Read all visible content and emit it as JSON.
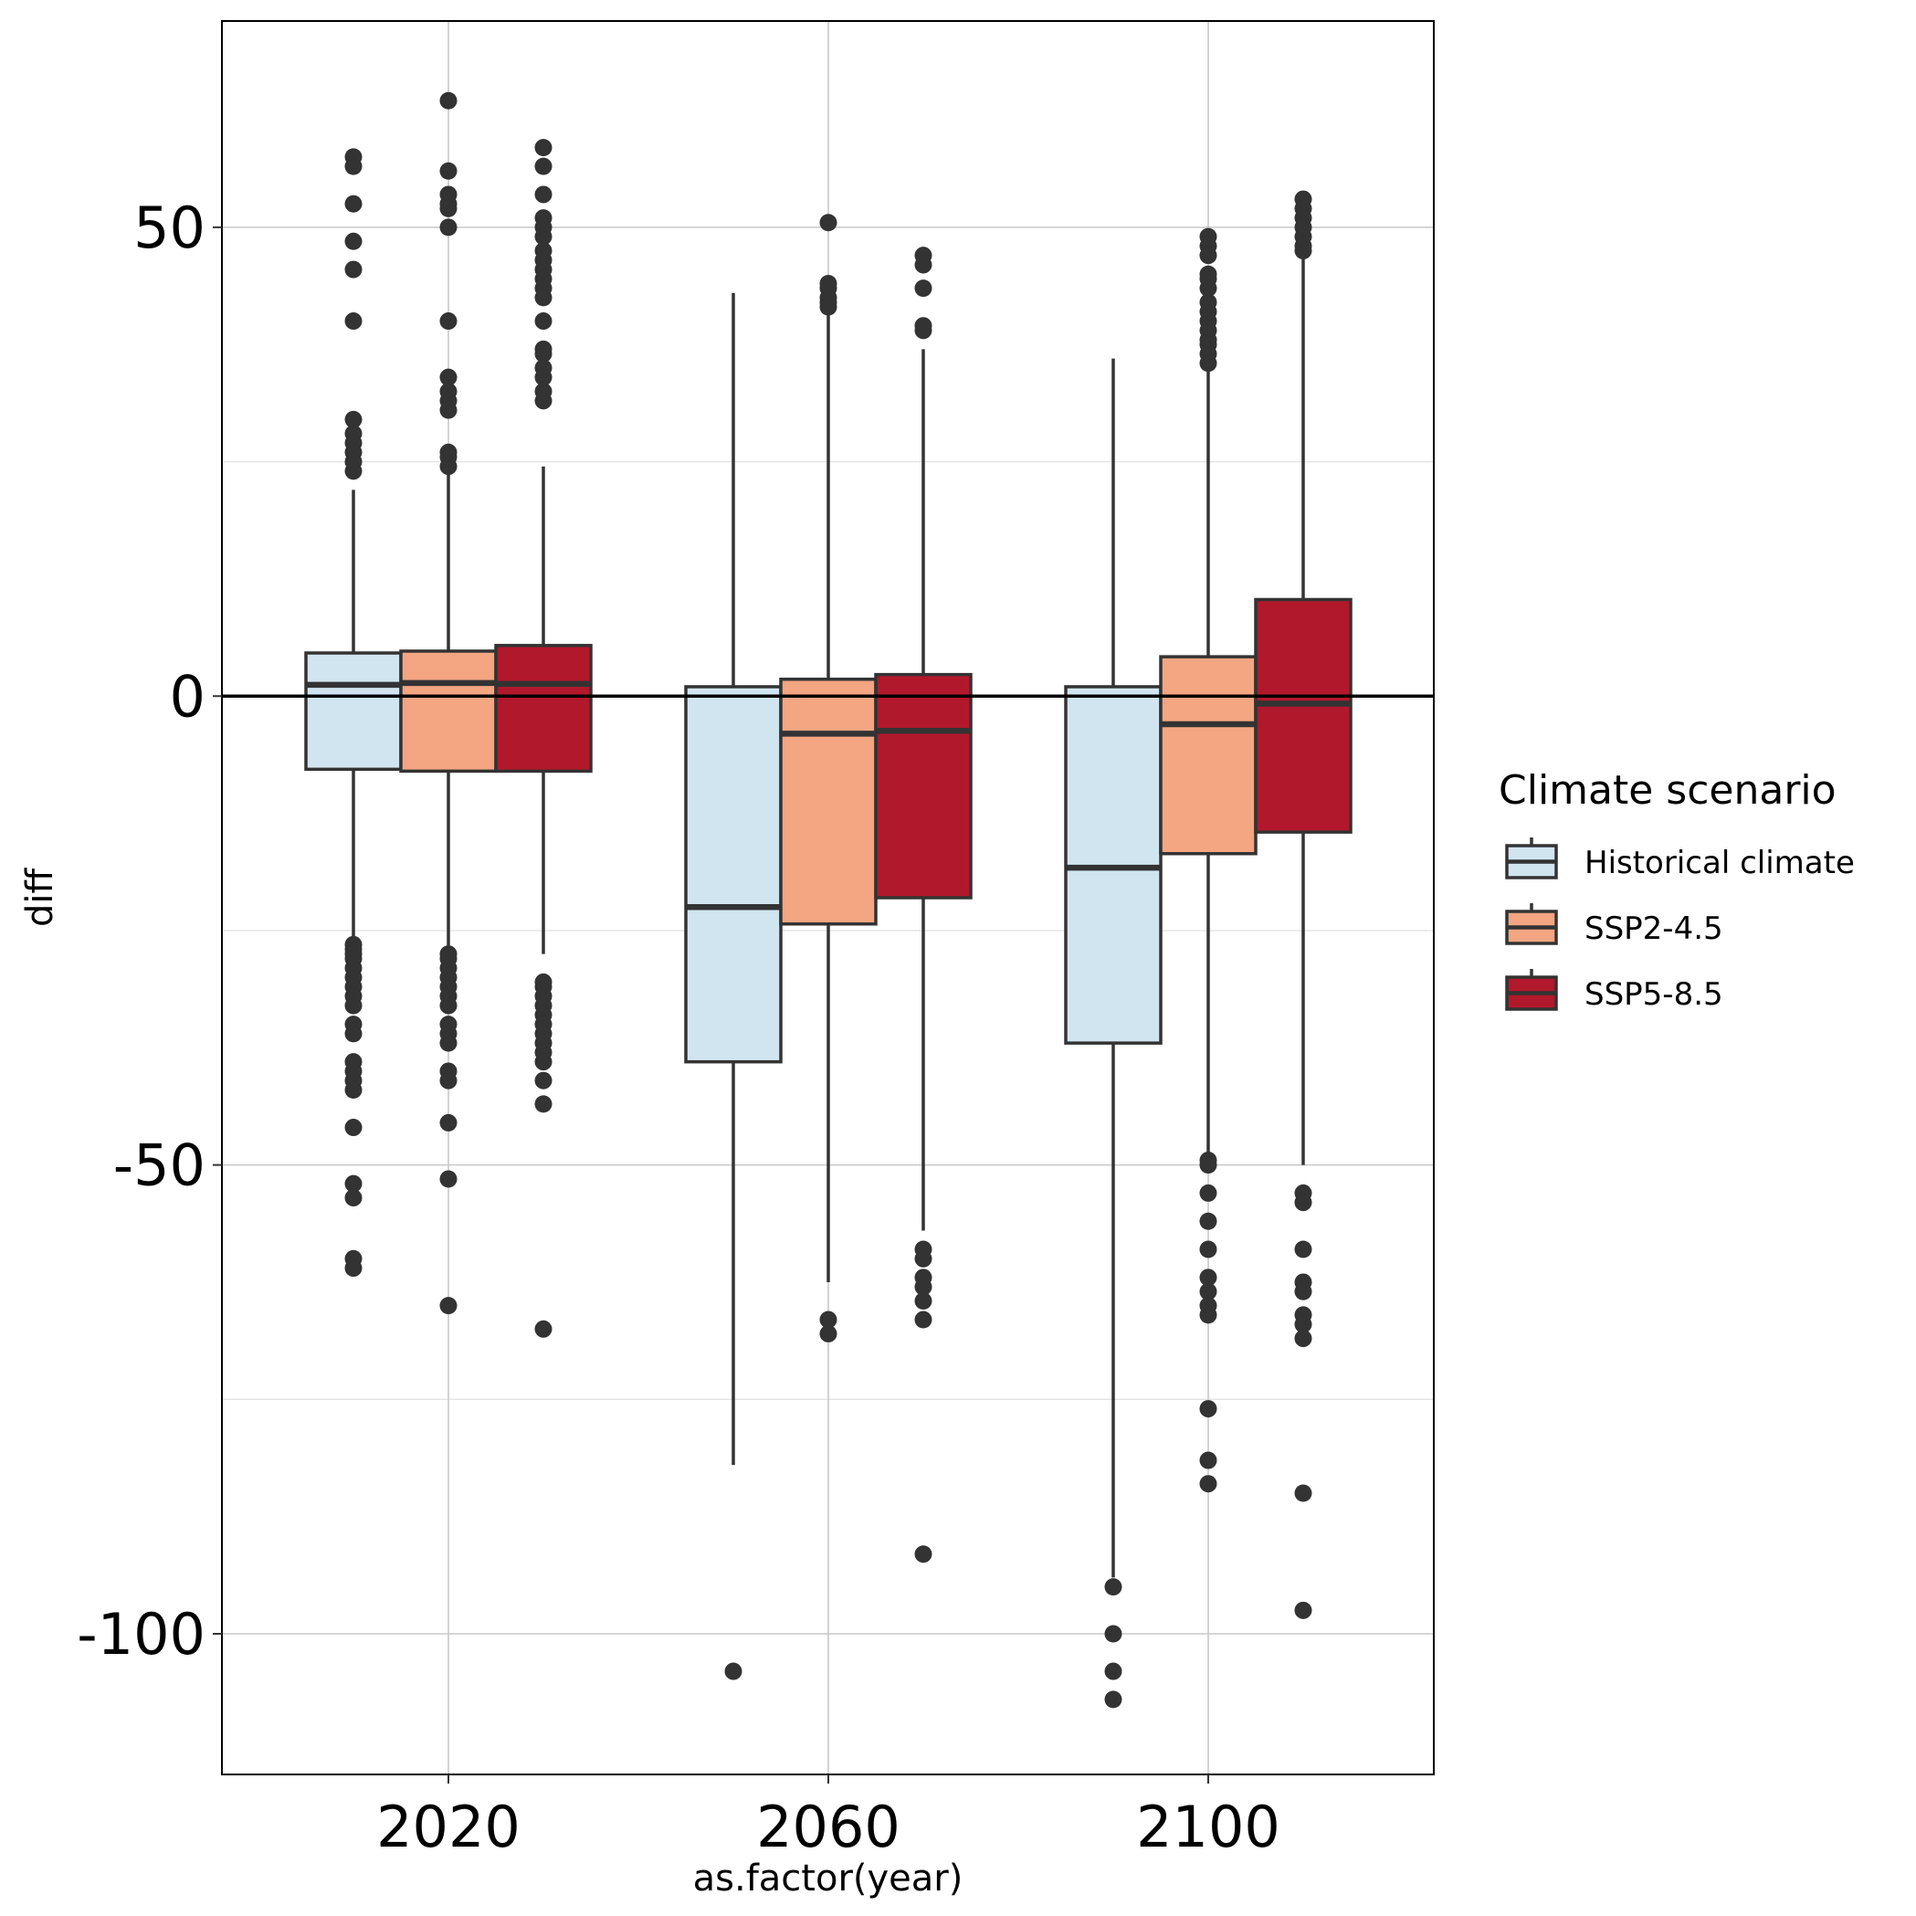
{
  "chart_data": {
    "type": "boxplot",
    "title": "",
    "xlabel": "as.factor(year)",
    "ylabel": "diff",
    "categories": [
      "2020",
      "2060",
      "2100"
    ],
    "ylim": [
      -115,
      72
    ],
    "yticks": [
      50,
      0,
      -50,
      -100
    ],
    "ytick_labels": [
      "50",
      "0",
      "-50",
      "-100"
    ],
    "minor_gridlines": [
      25,
      -25,
      -75
    ],
    "grid": true,
    "reference_line": 0,
    "legend": {
      "title": "Climate scenario",
      "position": "right",
      "entries": [
        "Historical climate",
        "SSP2-4.5",
        "SSP5-8.5"
      ]
    },
    "series": [
      {
        "name": "Historical climate",
        "color": "#d1e5f0",
        "boxes": [
          {
            "category": "2020",
            "whisker_low": -26,
            "q1": -7.8,
            "median": 1.2,
            "q3": 4.6,
            "whisker_high": 22,
            "outliers": [
              57.5,
              56.5,
              52.5,
              48.5,
              45.5,
              40,
              29.5,
              28,
              27,
              26,
              25,
              24,
              -26.5,
              -27,
              -27.5,
              -28,
              -29,
              -30,
              -31,
              -32,
              -33,
              -35,
              -36,
              -39,
              -40,
              -41,
              -42,
              -46,
              -52,
              -53.5,
              -60,
              -61
            ]
          },
          {
            "category": "2060",
            "whisker_low": -82,
            "q1": -39,
            "median": -22.5,
            "q3": 1,
            "whisker_high": 43,
            "outliers": [
              -104
            ]
          },
          {
            "category": "2100",
            "whisker_low": -94,
            "q1": -37,
            "median": -18.3,
            "q3": 1,
            "whisker_high": 36,
            "outliers": [
              -95,
              -100,
              -104,
              -107
            ]
          }
        ]
      },
      {
        "name": "SSP2-4.5",
        "color": "#f4a582",
        "boxes": [
          {
            "category": "2020",
            "whisker_low": -27,
            "q1": -8,
            "median": 1.4,
            "q3": 4.8,
            "whisker_high": 24,
            "outliers": [
              63.5,
              56,
              53.5,
              52.5,
              52,
              50,
              40,
              34,
              32.5,
              31.5,
              30.5,
              26,
              25.5,
              24.5,
              -27.5,
              -28,
              -29,
              -30,
              -31,
              -32,
              -33,
              -35,
              -36,
              -37,
              -40,
              -41,
              -45.5,
              -51.5,
              -65
            ]
          },
          {
            "category": "2060",
            "whisker_low": -62.5,
            "q1": -24.3,
            "median": -4,
            "q3": 1.8,
            "whisker_high": 43,
            "outliers": [
              50.5,
              44,
              43.5,
              42.5,
              42,
              41.5,
              -66.5,
              -68
            ]
          },
          {
            "category": "2100",
            "whisker_low": -49,
            "q1": -16.8,
            "median": -3,
            "q3": 4.2,
            "whisker_high": 37,
            "outliers": [
              49,
              48,
              47,
              45,
              44.5,
              43.5,
              42,
              41,
              40,
              39,
              38,
              37.5,
              36.5,
              35.5,
              -49.5,
              -50,
              -53,
              -56,
              -59,
              -62,
              -63.5,
              -65,
              -66,
              -76,
              -81.5,
              -84
            ]
          }
        ]
      },
      {
        "name": "SSP5-8.5",
        "color": "#b2182b",
        "boxes": [
          {
            "category": "2020",
            "whisker_low": -27.5,
            "q1": -8,
            "median": 1.3,
            "q3": 5.4,
            "whisker_high": 24.5,
            "outliers": [
              58.5,
              56.5,
              53.5,
              51,
              50,
              49,
              47.5,
              46.5,
              45.5,
              44.5,
              43.5,
              42.5,
              40,
              37,
              36.5,
              35,
              34,
              32.5,
              31.5,
              -30.5,
              -31,
              -32,
              -33,
              -34,
              -35,
              -36,
              -37,
              -38,
              -39,
              -41,
              -43.5,
              -67.5
            ]
          },
          {
            "category": "2060",
            "whisker_low": -57,
            "q1": -21.5,
            "median": -3.7,
            "q3": 2.3,
            "whisker_high": 37,
            "outliers": [
              47,
              46,
              43.5,
              39.5,
              39,
              -59,
              -60,
              -62,
              -63,
              -64.5,
              -66.5,
              -91.5
            ]
          },
          {
            "category": "2100",
            "whisker_low": -50,
            "q1": -14.5,
            "median": -0.8,
            "q3": 10.3,
            "whisker_high": 47,
            "outliers": [
              53,
              52,
              51,
              50,
              49,
              48,
              47.5,
              -53,
              -54,
              -59,
              -62.5,
              -63.5,
              -66,
              -67,
              -68.5,
              -85,
              -97.5
            ]
          }
        ]
      }
    ]
  }
}
